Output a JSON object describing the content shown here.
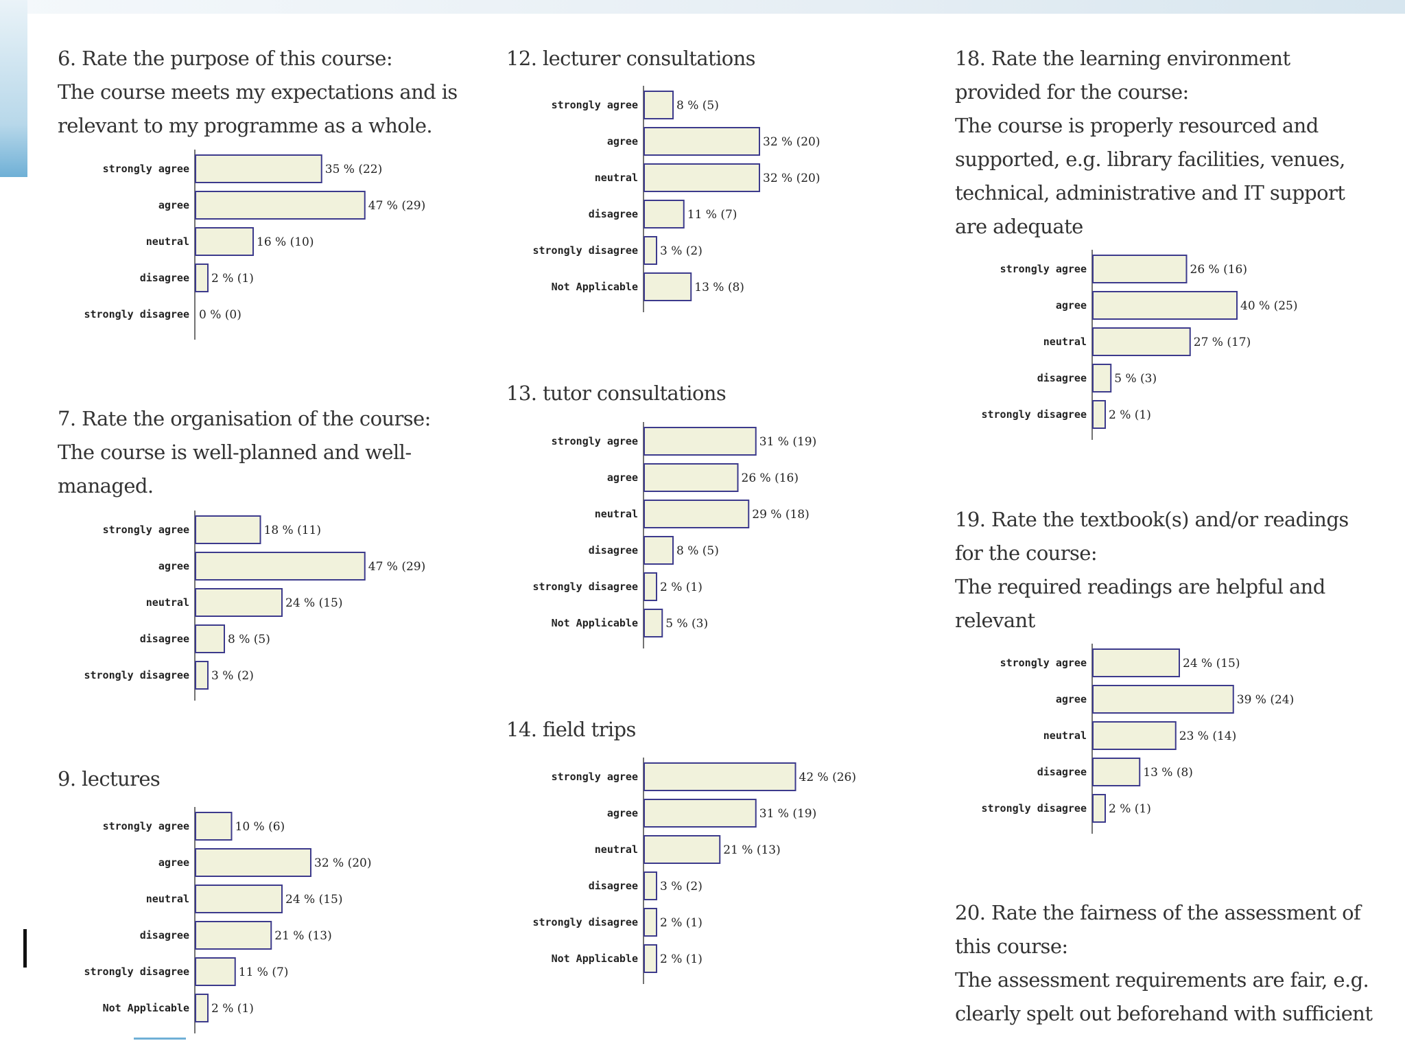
{
  "chart_data": [
    {
      "type": "bar",
      "title": "6. Rate the purpose of this course:\nThe course meets my expectations and is\nrelevant to my programme as a whole.",
      "categories": [
        "strongly agree",
        "agree",
        "neutral",
        "disagree",
        "strongly disagree"
      ],
      "values": [
        35,
        47,
        16,
        2,
        0
      ],
      "counts": [
        22,
        29,
        10,
        1,
        0
      ],
      "labels": [
        "35 % (22)",
        "47 % (29)",
        "16 % (10)",
        "2 % (1)",
        "0 % (0)"
      ]
    },
    {
      "type": "bar",
      "title": "7. Rate the organisation of the course:\nThe course is well-planned and well-\nmanaged.",
      "categories": [
        "strongly agree",
        "agree",
        "neutral",
        "disagree",
        "strongly disagree"
      ],
      "values": [
        18,
        47,
        24,
        8,
        3
      ],
      "counts": [
        11,
        29,
        15,
        5,
        2
      ],
      "labels": [
        "18 % (11)",
        "47 % (29)",
        "24 % (15)",
        "8 % (5)",
        "3 % (2)"
      ]
    },
    {
      "type": "bar",
      "title": "9. lectures",
      "categories": [
        "strongly agree",
        "agree",
        "neutral",
        "disagree",
        "strongly disagree",
        "Not Applicable"
      ],
      "values": [
        10,
        32,
        24,
        21,
        11,
        2
      ],
      "counts": [
        6,
        20,
        15,
        13,
        7,
        1
      ],
      "labels": [
        "10 % (6)",
        "32 % (20)",
        "24 % (15)",
        "21 % (13)",
        "11 % (7)",
        "2 % (1)"
      ]
    },
    {
      "type": "bar",
      "title": "12. lecturer consultations",
      "categories": [
        "strongly agree",
        "agree",
        "neutral",
        "disagree",
        "strongly disagree",
        "Not Applicable"
      ],
      "values": [
        8,
        32,
        32,
        11,
        3,
        13
      ],
      "counts": [
        5,
        20,
        20,
        7,
        2,
        8
      ],
      "labels": [
        "8 % (5)",
        "32 % (20)",
        "32 % (20)",
        "11 % (7)",
        "3 % (2)",
        "13 % (8)"
      ]
    },
    {
      "type": "bar",
      "title": "13. tutor consultations",
      "categories": [
        "strongly agree",
        "agree",
        "neutral",
        "disagree",
        "strongly disagree",
        "Not Applicable"
      ],
      "values": [
        31,
        26,
        29,
        8,
        2,
        5
      ],
      "counts": [
        19,
        16,
        18,
        5,
        1,
        3
      ],
      "labels": [
        "31 % (19)",
        "26 % (16)",
        "29 % (18)",
        "8 % (5)",
        "2 % (1)",
        "5 % (3)"
      ]
    },
    {
      "type": "bar",
      "title": "14. field trips",
      "categories": [
        "strongly agree",
        "agree",
        "neutral",
        "disagree",
        "strongly disagree",
        "Not Applicable"
      ],
      "values": [
        42,
        31,
        21,
        3,
        2,
        2
      ],
      "counts": [
        26,
        19,
        13,
        2,
        1,
        1
      ],
      "labels": [
        "42 % (26)",
        "31 % (19)",
        "21 % (13)",
        "3 % (2)",
        "2 % (1)",
        "2 % (1)"
      ]
    },
    {
      "type": "bar",
      "title": "18. Rate the learning environment\nprovided for the course:\nThe course is properly resourced and\nsupported, e.g. library facilities, venues,\ntechnical, administrative and IT support\nare adequate",
      "categories": [
        "strongly agree",
        "agree",
        "neutral",
        "disagree",
        "strongly disagree"
      ],
      "values": [
        26,
        40,
        27,
        5,
        2
      ],
      "counts": [
        16,
        25,
        17,
        3,
        1
      ],
      "labels": [
        "26 % (16)",
        "40 % (25)",
        "27 % (17)",
        "5 % (3)",
        "2 % (1)"
      ]
    },
    {
      "type": "bar",
      "title": "19. Rate the textbook(s) and/or readings\nfor the course:\nThe required readings are helpful and\nrelevant",
      "categories": [
        "strongly agree",
        "agree",
        "neutral",
        "disagree",
        "strongly disagree"
      ],
      "values": [
        24,
        39,
        23,
        13,
        2
      ],
      "counts": [
        15,
        24,
        14,
        8,
        1
      ],
      "labels": [
        "24 % (15)",
        "39 % (24)",
        "23 % (14)",
        "13 % (8)",
        "2 % (1)"
      ]
    },
    {
      "type": "text",
      "title": "20. Rate the fairness of the assessment of\nthis course:\nThe assessment requirements are fair, e.g.\nclearly spelt out beforehand with sufficient"
    }
  ]
}
